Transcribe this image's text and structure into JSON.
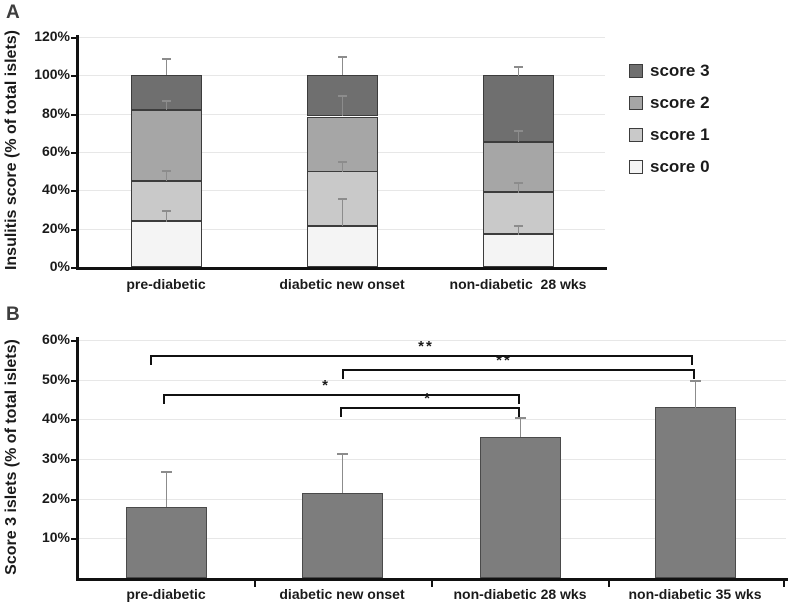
{
  "chart_data": [
    {
      "panel_label": "A",
      "type": "stacked-bar",
      "ylabel": "Insulitis score (% of total islets)",
      "categories": [
        "pre-diabetic",
        "diabetic new onset",
        "non-diabetic  28 wks"
      ],
      "series": [
        {
          "name": "score 0",
          "color": "#f4f4f4",
          "values": [
            24,
            21.5,
            17
          ]
        },
        {
          "name": "score 1",
          "color": "#c9c9c9",
          "values": [
            21,
            28.5,
            22
          ]
        },
        {
          "name": "score 2",
          "color": "#a6a6a6",
          "values": [
            37,
            28.5,
            26
          ]
        },
        {
          "name": "score 3",
          "color": "#6f6f6f",
          "values": [
            18,
            21.5,
            35
          ]
        }
      ],
      "stack_boundaries": [
        [
          24,
          45,
          82,
          100
        ],
        [
          21.5,
          50,
          78.5,
          100
        ],
        [
          17,
          39,
          65,
          100
        ]
      ],
      "error_tops": [
        [
          30,
          50.5,
          87,
          109
        ],
        [
          36,
          55.5,
          89.5,
          110
        ],
        [
          22,
          44.5,
          71.5,
          105
        ]
      ],
      "ylim": [
        0,
        120
      ],
      "ytick_vals": [
        0,
        20,
        40,
        60,
        80,
        100,
        120
      ],
      "ytick_labels": [
        "0%",
        "20%",
        "40%",
        "60%",
        "80%",
        "100%",
        "120%"
      ],
      "grid": true,
      "legend_position": "right",
      "legend": [
        {
          "label": "score 3",
          "color": "#6f6f6f"
        },
        {
          "label": "score 2",
          "color": "#a6a6a6"
        },
        {
          "label": "score 1",
          "color": "#c9c9c9"
        },
        {
          "label": "score 0",
          "color": "#f4f4f4"
        }
      ]
    },
    {
      "panel_label": "B",
      "type": "bar",
      "ylabel": "Score 3 islets (% of total islets)",
      "categories": [
        "pre-diabetic",
        "diabetic new onset",
        "non-diabetic 28 wks",
        "non-diabetic 35 wks"
      ],
      "values": [
        18,
        21.5,
        35.5,
        43
      ],
      "error_tops": [
        27,
        31.5,
        40.5,
        50
      ],
      "bar_color": "#7d7d7d",
      "ylim": [
        0,
        60
      ],
      "ytick_vals": [
        10,
        20,
        30,
        40,
        50,
        60
      ],
      "ytick_labels": [
        "10%",
        "20%",
        "30%",
        "40%",
        "50%",
        "60%"
      ],
      "grid": true,
      "significance": [
        {
          "from": 0,
          "to": 3,
          "label": "**",
          "y": 56.2
        },
        {
          "from": 1,
          "to": 3,
          "label": "**",
          "y": 52.7
        },
        {
          "from": 0,
          "to": 2,
          "label": "*",
          "y": 46.4
        },
        {
          "from": 1,
          "to": 2,
          "label": "*",
          "y": 43.1
        }
      ]
    }
  ],
  "colors": {
    "axis": "#111111",
    "gridline": "#e7e7e7",
    "whisker": "#8c8c8c",
    "segment_border": "#3c3c3c",
    "bar_border": "#4a4a4a",
    "text": "#1a1a1a"
  }
}
